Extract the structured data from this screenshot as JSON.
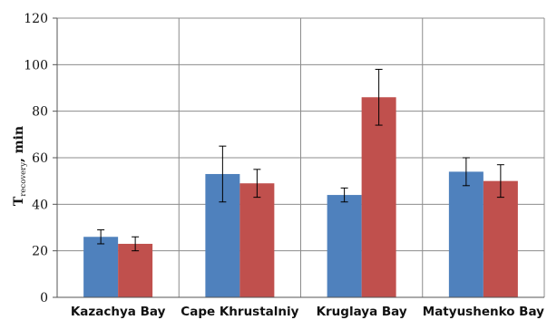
{
  "chart_data": {
    "type": "bar",
    "title": "",
    "xlabel": "",
    "ylabel": {
      "main": "T",
      "subscript": "recovery",
      "suffix": ", min"
    },
    "ylim": [
      0,
      120
    ],
    "yticks": [
      0,
      20,
      40,
      60,
      80,
      100,
      120
    ],
    "grid": true,
    "legend": "none",
    "categories": [
      "Kazachya Bay",
      "Cape Khrustalniy",
      "Kruglaya Bay",
      "Matyushenko Bay"
    ],
    "series": [
      {
        "color": "#4f81bd",
        "values": [
          26,
          53,
          44,
          54
        ],
        "errors": [
          3,
          12,
          3,
          6
        ]
      },
      {
        "color": "#c0504d",
        "values": [
          23,
          49,
          86,
          50
        ],
        "errors": [
          3,
          6,
          12,
          7
        ]
      }
    ]
  }
}
